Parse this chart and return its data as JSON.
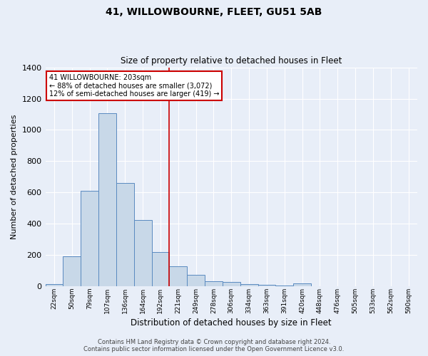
{
  "title": "41, WILLOWBOURNE, FLEET, GU51 5AB",
  "subtitle": "Size of property relative to detached houses in Fleet",
  "xlabel": "Distribution of detached houses by size in Fleet",
  "ylabel": "Number of detached properties",
  "footer_line1": "Contains HM Land Registry data © Crown copyright and database right 2024.",
  "footer_line2": "Contains public sector information licensed under the Open Government Licence v3.0.",
  "annotation_line1": "41 WILLOWBOURNE: 203sqm",
  "annotation_line2": "← 88% of detached houses are smaller (3,072)",
  "annotation_line3": "12% of semi-detached houses are larger (419) →",
  "bar_labels": [
    "22sqm",
    "50sqm",
    "79sqm",
    "107sqm",
    "136sqm",
    "164sqm",
    "192sqm",
    "221sqm",
    "249sqm",
    "278sqm",
    "306sqm",
    "334sqm",
    "363sqm",
    "391sqm",
    "420sqm",
    "448sqm",
    "476sqm",
    "505sqm",
    "533sqm",
    "562sqm",
    "590sqm"
  ],
  "bar_values": [
    15,
    193,
    612,
    1107,
    663,
    425,
    218,
    128,
    75,
    33,
    30,
    15,
    10,
    8,
    18,
    0,
    0,
    0,
    0,
    0,
    0
  ],
  "bar_color": "#c8d8e8",
  "bar_edge_color": "#5a8ac0",
  "property_line_x": 6.5,
  "property_line_color": "#cc0000",
  "ylim": [
    0,
    1400
  ],
  "yticks": [
    0,
    200,
    400,
    600,
    800,
    1000,
    1200,
    1400
  ],
  "bg_color": "#e8eef8",
  "grid_color": "#ffffff",
  "annotation_box_color": "#ffffff",
  "annotation_box_edge": "#cc0000"
}
